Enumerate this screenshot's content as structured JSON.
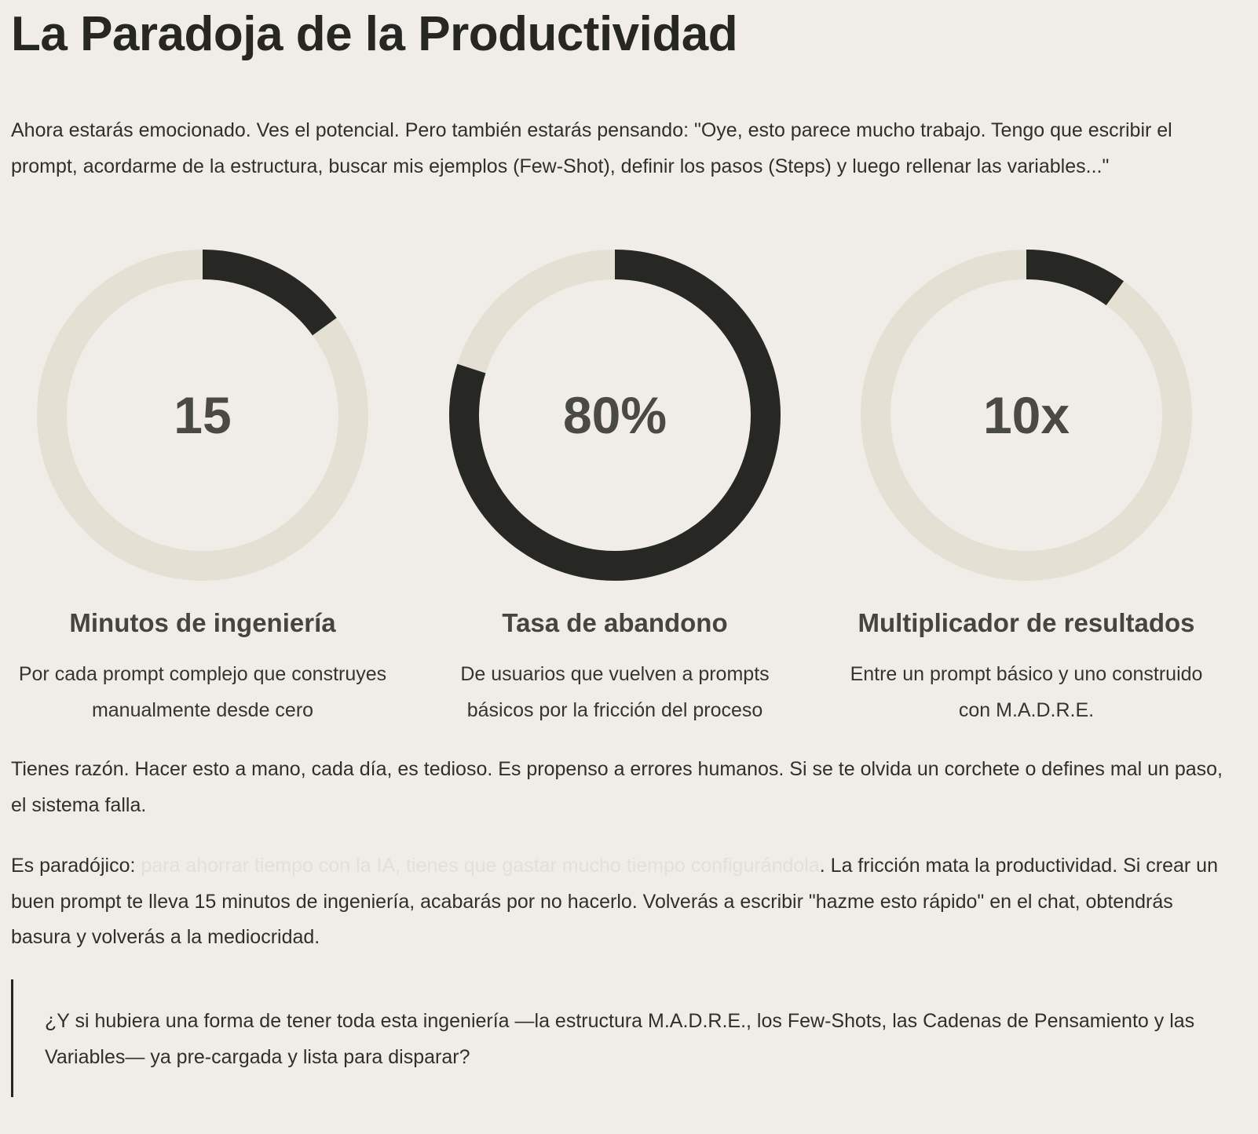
{
  "header": {
    "title": "La Paradoja de la Productividad"
  },
  "intro": "Ahora estarás emocionado. Ves el potencial. Pero también estarás pensando: \"Oye, esto parece mucho trabajo. Tengo que escribir el prompt, acordarme de la estructura, buscar mis ejemplos (Few-Shot), definir los pasos (Steps) y luego rellenar las variables...\"",
  "stats": {
    "lim": [
      0,
      100
    ],
    "items": [
      {
        "value": 15,
        "title": "Minutos de ingeniería",
        "desc": "Por cada prompt complejo que construyes manualmente desde cero"
      },
      {
        "value": 80,
        "value_label": "80%",
        "title": "Tasa de abandono",
        "desc": "De usuarios que vuelven a prompts básicos por la fricción del proceso"
      },
      {
        "value": 10,
        "value_label": "10x",
        "title": "Multiplicador de resultados",
        "desc": "Entre un prompt básico y uno construido con M.A.D.R.E."
      }
    ]
  },
  "para2": "Tienes razón. Hacer esto a mano, cada día, es tedioso. Es propenso a errores humanos. Si se te olvida un corchete o defines mal un paso, el sistema falla.",
  "para3": {
    "before": "Es paradójico: ",
    "highlight": "para ahorrar tiempo con la IA, tienes que gastar mucho tiempo configurándola",
    "after": ". La fricción mata la productividad. Si crear un buen prompt te lleva 15 minutos de ingeniería, acabarás por no hacerlo. Volverás a escribir \"hazme esto rápido\" en el chat, obtendrás basura y volverás a la mediocridad."
  },
  "quote": "¿Y si hubiera una forma de tener toda esta ingeniería —la estructura M.A.D.R.E., los Few-Shots, las Cadenas de Pensamiento y las Variables— ya pre-cargada y lista para disparar?"
}
